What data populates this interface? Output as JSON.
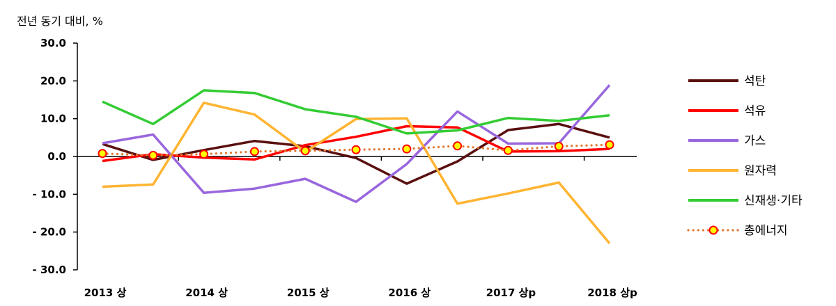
{
  "chart_data": {
    "type": "line",
    "unit_label": "전년 동기 대비, %",
    "ylim": [
      -30,
      30
    ],
    "yticks": [
      "30.0",
      "20.0",
      "10.0",
      "0.0",
      "- 10.0",
      "- 20.0",
      "- 30.0"
    ],
    "ytick_values": [
      30,
      20,
      10,
      0,
      -10,
      -20,
      -30
    ],
    "xtick_labels": [
      "2013 상",
      "2014 상",
      "2015 상",
      "2016 상",
      "2017 상p",
      "2018 상p"
    ],
    "xtick_index": [
      0,
      2,
      4,
      6,
      8,
      10
    ],
    "n_points": 11,
    "grid": false,
    "legend_position": "right",
    "series": [
      {
        "name": "석탄",
        "color": "#5a0f0f",
        "style": "solid",
        "values": [
          3.3,
          -0.9,
          1.7,
          4.1,
          2.7,
          -0.4,
          -7.2,
          -1.3,
          7.0,
          8.6,
          5.0
        ]
      },
      {
        "name": "석유",
        "color": "#ff0000",
        "style": "solid",
        "values": [
          -1.2,
          0.6,
          -0.3,
          -0.8,
          3.0,
          5.2,
          8.0,
          7.7,
          1.3,
          1.4,
          2.0
        ]
      },
      {
        "name": "가스",
        "color": "#9966dd",
        "style": "solid",
        "values": [
          3.5,
          5.8,
          -9.6,
          -8.5,
          -5.9,
          -12.0,
          -2.0,
          11.9,
          3.4,
          3.5,
          18.9
        ]
      },
      {
        "name": "원자력",
        "color": "#ffb432",
        "style": "solid",
        "values": [
          -8.0,
          -7.4,
          14.2,
          11.1,
          1.2,
          9.9,
          10.1,
          -12.5,
          -9.8,
          -6.9,
          -23.0
        ]
      },
      {
        "name": "신재생·기타",
        "color": "#33cc33",
        "style": "solid",
        "values": [
          14.5,
          8.6,
          17.5,
          16.8,
          12.5,
          10.5,
          6.1,
          6.9,
          10.2,
          9.4,
          10.9
        ]
      },
      {
        "name": "총에너지",
        "color": "#e07830",
        "style": "dotted",
        "marker_fill": "#ffff00",
        "marker_edge": "#ff0000",
        "values": [
          0.8,
          0.3,
          0.6,
          1.3,
          1.5,
          1.8,
          2.0,
          2.8,
          1.6,
          2.7,
          3.1
        ]
      }
    ]
  }
}
